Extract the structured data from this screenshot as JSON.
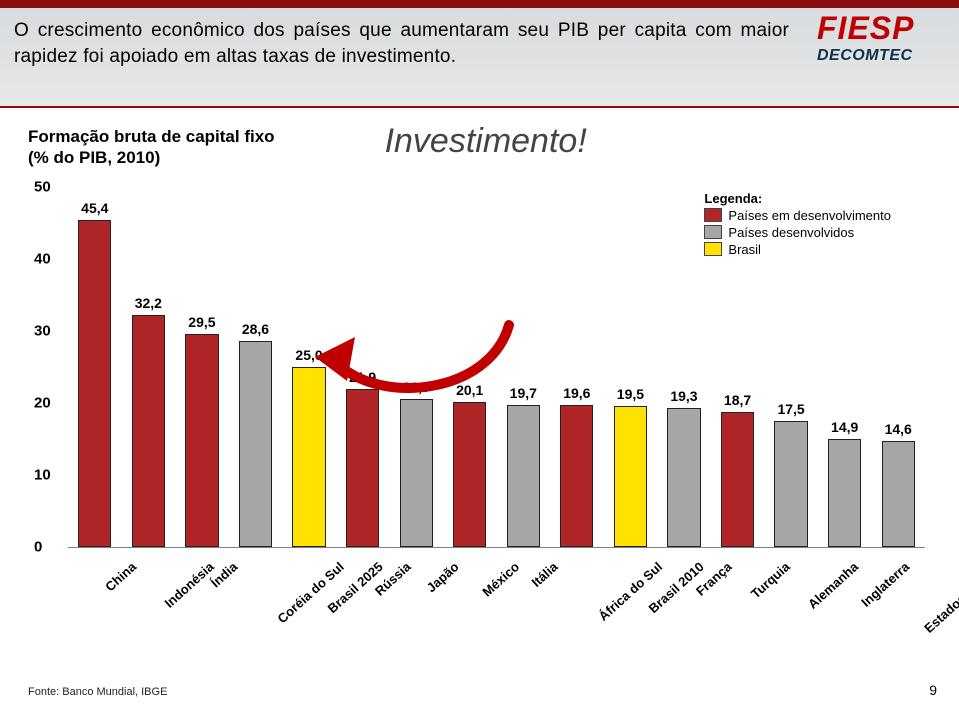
{
  "header": {
    "text": "O crescimento econômico dos países que aumentaram seu PIB per capita com maior rapidez foi apoiado em altas taxas de investimento.",
    "logo_main": "FIESP",
    "logo_sub": "DECOMTEC"
  },
  "subtitle": {
    "left_line1": "Formação bruta de capital fixo",
    "left_line2": "(% do PIB, 2010)",
    "right": "Investimento!"
  },
  "legend": {
    "title": "Legenda:",
    "items": [
      {
        "label": "Países em desenvolvimento",
        "color": "#b02626"
      },
      {
        "label": "Países desenvolvidos",
        "color": "#a6a6a6"
      },
      {
        "label": "Brasil",
        "color": "#ffe200"
      }
    ]
  },
  "chart": {
    "type": "bar",
    "ylim": [
      0,
      50
    ],
    "ytick_step": 10,
    "yticks": [
      0,
      10,
      20,
      30,
      40,
      50
    ],
    "grid_color": "#bfbfbf",
    "plot_bg": "#ffffff",
    "bar_width_ratio": 0.62,
    "value_label_fontsize": 14,
    "axis_label_fontsize": 15,
    "xlabel_fontsize": 13,
    "bars": [
      {
        "name": "China",
        "value": 45.4,
        "text": "45,4",
        "color": "#b02626"
      },
      {
        "name": "Indonésia",
        "value": 32.2,
        "text": "32,2",
        "color": "#b02626"
      },
      {
        "name": "Índia",
        "value": 29.5,
        "text": "29,5",
        "color": "#b02626"
      },
      {
        "name": "Coréia do Sul",
        "value": 28.6,
        "text": "28,6",
        "color": "#a6a6a6"
      },
      {
        "name": "Brasil 2025",
        "value": 25.0,
        "text": "25,0",
        "color": "#ffe200"
      },
      {
        "name": "Rússia",
        "value": 21.9,
        "text": "21,9",
        "color": "#b02626"
      },
      {
        "name": "Japão",
        "value": 20.5,
        "text": "20,5",
        "color": "#a6a6a6"
      },
      {
        "name": "México",
        "value": 20.1,
        "text": "20,1",
        "color": "#b02626"
      },
      {
        "name": "Itália",
        "value": 19.7,
        "text": "19,7",
        "color": "#a6a6a6"
      },
      {
        "name": "África do Sul",
        "value": 19.6,
        "text": "19,6",
        "color": "#b02626"
      },
      {
        "name": "Brasil 2010",
        "value": 19.5,
        "text": "19,5",
        "color": "#ffe200"
      },
      {
        "name": "França",
        "value": 19.3,
        "text": "19,3",
        "color": "#a6a6a6"
      },
      {
        "name": "Turquia",
        "value": 18.7,
        "text": "18,7",
        "color": "#b02626"
      },
      {
        "name": "Alemanha",
        "value": 17.5,
        "text": "17,5",
        "color": "#a6a6a6"
      },
      {
        "name": "Inglaterra",
        "value": 14.9,
        "text": "14,9",
        "color": "#a6a6a6"
      },
      {
        "name": "Estados Unidos",
        "value": 14.6,
        "text": "14,6",
        "color": "#a6a6a6"
      }
    ],
    "arrow": {
      "color": "#c00000",
      "stroke_width": 10
    }
  },
  "footer": {
    "source": "Fonte: Banco Mundial, IBGE",
    "page": "9"
  }
}
